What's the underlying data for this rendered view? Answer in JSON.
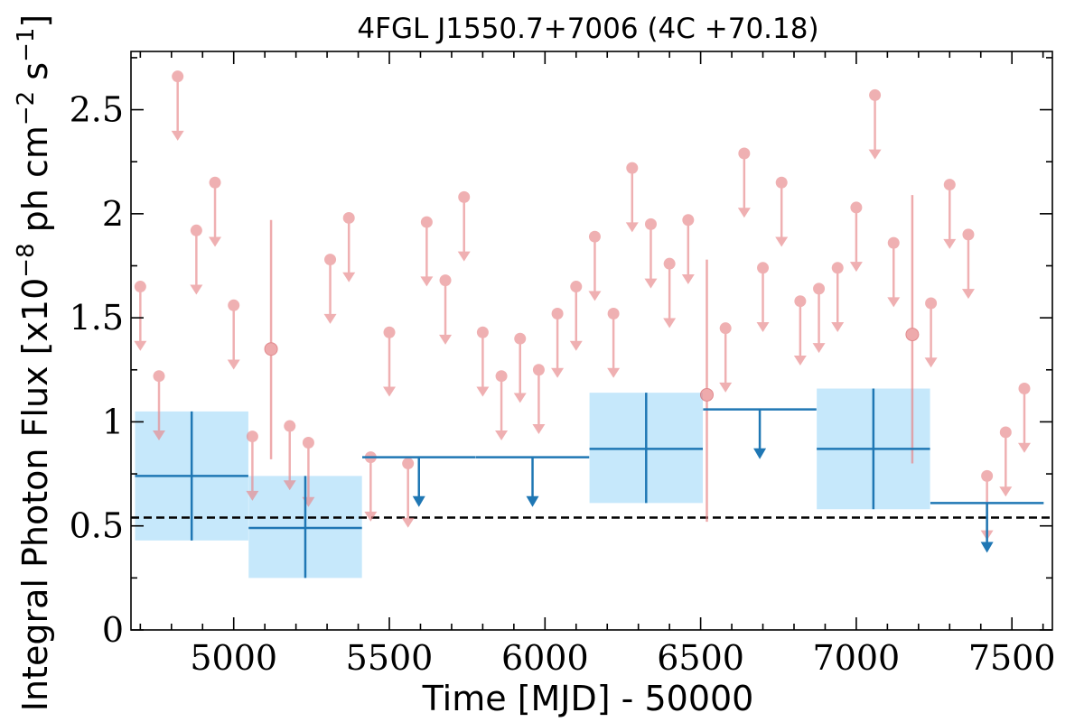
{
  "chart_data": {
    "type": "scatter",
    "title": "4FGL J1550.7+7006 (4C +70.18)",
    "xlabel": "Time [MJD] - 50000",
    "ylabel": "Integral Photon Flux [x10^-8 ph cm^-2 s^-1]",
    "ylabel_parts": {
      "main": "Integral Photon Flux [x10",
      "exp1": "−8",
      "mid": " ph cm",
      "exp2": "−2",
      "tail": " s",
      "exp3": "−1",
      "close": "]"
    },
    "xlim": [
      4670,
      7630
    ],
    "ylim": [
      0,
      2.78
    ],
    "xticks": [
      5000,
      5500,
      6000,
      6500,
      7000,
      7500
    ],
    "yticks": [
      0,
      0.5,
      1,
      1.5,
      2,
      2.5
    ],
    "ytick_labels": [
      "0",
      "0.5",
      "1",
      "1.5",
      "2",
      "2.5"
    ],
    "grid": false,
    "reference_line": {
      "y": 0.54,
      "style": "dashed",
      "color": "#000000"
    },
    "colors": {
      "short_bins": "#e8878a",
      "long_bins": "#1f77b4",
      "long_bins_band": "#c6e8fb"
    },
    "series": [
      {
        "bin_width_days": 30,
        "upper_limits": [
          {
            "x": 4700,
            "y": 1.65
          },
          {
            "x": 4760,
            "y": 1.22
          },
          {
            "x": 4820,
            "y": 2.66
          },
          {
            "x": 4880,
            "y": 1.92
          },
          {
            "x": 4940,
            "y": 2.15
          },
          {
            "x": 5000,
            "y": 1.56
          },
          {
            "x": 5060,
            "y": 0.93
          },
          {
            "x": 5180,
            "y": 0.98
          },
          {
            "x": 5240,
            "y": 0.9
          },
          {
            "x": 5310,
            "y": 1.78
          },
          {
            "x": 5370,
            "y": 1.98
          },
          {
            "x": 5440,
            "y": 0.83
          },
          {
            "x": 5500,
            "y": 1.43
          },
          {
            "x": 5560,
            "y": 0.8
          },
          {
            "x": 5620,
            "y": 1.96
          },
          {
            "x": 5680,
            "y": 1.68
          },
          {
            "x": 5740,
            "y": 2.08
          },
          {
            "x": 5800,
            "y": 1.43
          },
          {
            "x": 5860,
            "y": 1.22
          },
          {
            "x": 5920,
            "y": 1.4
          },
          {
            "x": 5980,
            "y": 1.25
          },
          {
            "x": 6040,
            "y": 1.52
          },
          {
            "x": 6100,
            "y": 1.65
          },
          {
            "x": 6160,
            "y": 1.89
          },
          {
            "x": 6220,
            "y": 1.52
          },
          {
            "x": 6280,
            "y": 2.22
          },
          {
            "x": 6340,
            "y": 1.95
          },
          {
            "x": 6400,
            "y": 1.76
          },
          {
            "x": 6460,
            "y": 1.97
          },
          {
            "x": 6580,
            "y": 1.45
          },
          {
            "x": 6640,
            "y": 2.29
          },
          {
            "x": 6700,
            "y": 1.74
          },
          {
            "x": 6760,
            "y": 2.15
          },
          {
            "x": 6820,
            "y": 1.58
          },
          {
            "x": 6880,
            "y": 1.64
          },
          {
            "x": 6940,
            "y": 1.74
          },
          {
            "x": 7000,
            "y": 2.03
          },
          {
            "x": 7060,
            "y": 2.57
          },
          {
            "x": 7120,
            "y": 1.86
          },
          {
            "x": 7240,
            "y": 1.57
          },
          {
            "x": 7300,
            "y": 2.14
          },
          {
            "x": 7360,
            "y": 1.9
          },
          {
            "x": 7420,
            "y": 0.74
          },
          {
            "x": 7480,
            "y": 0.95
          },
          {
            "x": 7540,
            "y": 1.16
          }
        ],
        "detections": [
          {
            "x": 5120,
            "y": 1.35,
            "yerr_low": 0.53,
            "yerr_high": 0.62
          },
          {
            "x": 6520,
            "y": 1.13,
            "yerr_low": 0.61,
            "yerr_high": 0.65
          },
          {
            "x": 7180,
            "y": 1.42,
            "yerr_low": 0.62,
            "yerr_high": 0.67
          }
        ]
      },
      {
        "bin_width_days": 365,
        "detections": [
          {
            "x": 4865,
            "y": 0.74,
            "xerr": 182,
            "y_lo": 0.43,
            "y_hi": 1.05
          },
          {
            "x": 5230,
            "y": 0.49,
            "xerr": 182,
            "y_lo": 0.25,
            "y_hi": 0.74
          },
          {
            "x": 6325,
            "y": 0.87,
            "xerr": 182,
            "y_lo": 0.61,
            "y_hi": 1.14
          },
          {
            "x": 7055,
            "y": 0.87,
            "xerr": 182,
            "y_lo": 0.58,
            "y_hi": 1.16
          }
        ],
        "upper_limits": [
          {
            "x": 5595,
            "y": 0.83,
            "xerr": 182
          },
          {
            "x": 5960,
            "y": 0.83,
            "xerr": 182
          },
          {
            "x": 6690,
            "y": 1.06,
            "xerr": 182
          },
          {
            "x": 7420,
            "y": 0.61,
            "xerr": 182
          }
        ]
      }
    ]
  }
}
